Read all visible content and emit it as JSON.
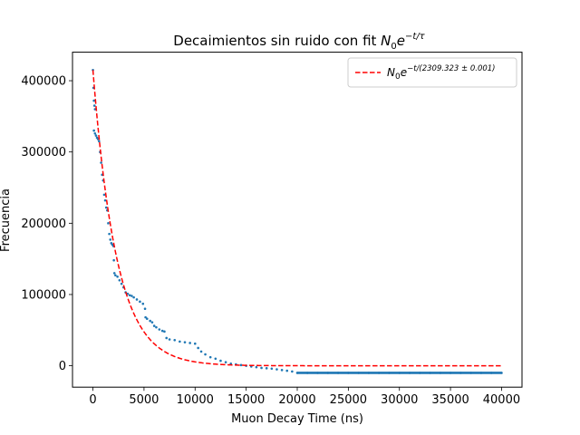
{
  "chart_data": {
    "type": "scatter",
    "title": {
      "prefix": "Decaimientos sin ruido con fit ",
      "math_base": "N",
      "math_sub": "0",
      "math_e": "e",
      "math_exp": "−t/τ"
    },
    "xlabel": "Muon Decay Time (ns)",
    "ylabel": "Frecuencia",
    "xlim": [
      -2000,
      42000
    ],
    "ylim": [
      -30000,
      440000
    ],
    "xticks": [
      0,
      5000,
      10000,
      15000,
      20000,
      25000,
      30000,
      35000,
      40000
    ],
    "yticks": [
      0,
      100000,
      200000,
      300000,
      400000
    ],
    "grid": false,
    "legend": {
      "placement": "top-right",
      "entries": [
        {
          "math_base": "N",
          "math_sub": "0",
          "math_e": "e",
          "math_exp": "−t/(2309.323 ± 0.001)",
          "style": "dashed",
          "color": "#ff0000"
        }
      ]
    },
    "series": [
      {
        "kind": "scatter",
        "color": "#1f77b4",
        "points": [
          [
            0,
            415000
          ],
          [
            50,
            390000
          ],
          [
            100,
            372000
          ],
          [
            150,
            365000
          ],
          [
            200,
            360000
          ],
          [
            100,
            330000
          ],
          [
            200,
            326000
          ],
          [
            300,
            323000
          ],
          [
            400,
            320000
          ],
          [
            500,
            318000
          ],
          [
            600,
            315000
          ],
          [
            700,
            300000
          ],
          [
            800,
            285000
          ],
          [
            900,
            268000
          ],
          [
            1000,
            260000
          ],
          [
            1100,
            240000
          ],
          [
            1200,
            232000
          ],
          [
            1300,
            222000
          ],
          [
            1400,
            218000
          ],
          [
            1500,
            200000
          ],
          [
            1600,
            185000
          ],
          [
            1700,
            177000
          ],
          [
            1800,
            172000
          ],
          [
            1900,
            170000
          ],
          [
            2000,
            168000
          ],
          [
            2050,
            148000
          ],
          [
            2100,
            130000
          ],
          [
            2200,
            127000
          ],
          [
            2400,
            125000
          ],
          [
            2600,
            120000
          ],
          [
            2800,
            115000
          ],
          [
            3000,
            110000
          ],
          [
            3200,
            103000
          ],
          [
            3400,
            101000
          ],
          [
            3600,
            99000
          ],
          [
            3800,
            98000
          ],
          [
            4000,
            96000
          ],
          [
            4300,
            93000
          ],
          [
            4600,
            90000
          ],
          [
            4900,
            87000
          ],
          [
            5100,
            80000
          ],
          [
            5150,
            68000
          ],
          [
            5300,
            66000
          ],
          [
            5600,
            63000
          ],
          [
            5800,
            61000
          ],
          [
            6000,
            56000
          ],
          [
            6200,
            54000
          ],
          [
            6500,
            51000
          ],
          [
            6800,
            49000
          ],
          [
            7000,
            48000
          ],
          [
            7200,
            39000
          ],
          [
            7500,
            37000
          ],
          [
            8000,
            36000
          ],
          [
            8500,
            34000
          ],
          [
            9000,
            33000
          ],
          [
            9500,
            32000
          ],
          [
            10000,
            31000
          ],
          [
            10300,
            25000
          ],
          [
            10600,
            20000
          ],
          [
            11000,
            16000
          ],
          [
            11500,
            12000
          ],
          [
            12000,
            10000
          ],
          [
            12500,
            7000
          ],
          [
            13000,
            5000
          ],
          [
            13500,
            3000
          ],
          [
            14000,
            2000
          ],
          [
            14500,
            1000
          ],
          [
            15000,
            0
          ],
          [
            15500,
            -1000
          ],
          [
            16000,
            -2000
          ],
          [
            16500,
            -3000
          ],
          [
            17000,
            -3500
          ],
          [
            17500,
            -4000
          ],
          [
            18000,
            -5000
          ],
          [
            18500,
            -6000
          ],
          [
            19000,
            -7000
          ],
          [
            19500,
            -8000
          ],
          [
            20000,
            -10000
          ],
          [
            21000,
            -10000
          ],
          [
            22000,
            -10000
          ],
          [
            23000,
            -10000
          ],
          [
            24000,
            -10000
          ],
          [
            25000,
            -10000
          ],
          [
            26000,
            -10000
          ],
          [
            27000,
            -10000
          ],
          [
            28000,
            -10000
          ],
          [
            29000,
            -10000
          ],
          [
            30000,
            -10000
          ],
          [
            31000,
            -10000
          ],
          [
            32000,
            -10000
          ],
          [
            33000,
            -10000
          ],
          [
            34000,
            -10000
          ],
          [
            35000,
            -10000
          ],
          [
            36000,
            -10000
          ],
          [
            37000,
            -10000
          ],
          [
            38000,
            -10000
          ],
          [
            39000,
            -10000
          ],
          [
            40000,
            -10000
          ]
        ]
      },
      {
        "kind": "fit_line",
        "color": "#ff0000",
        "style": "dashed",
        "N0": 415000,
        "tau": 2309.323,
        "x_range": [
          0,
          40000
        ]
      }
    ]
  }
}
